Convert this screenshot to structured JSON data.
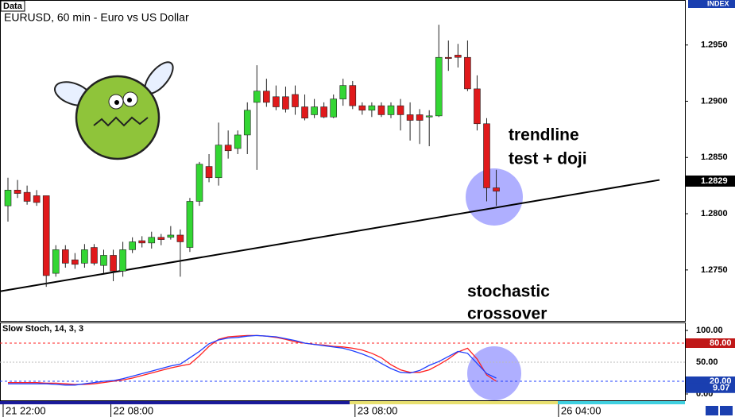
{
  "chart_data": {
    "type": "candlestick",
    "header_tag": "Data",
    "title": "EURUSD, 60 min - Euro vs US Dollar",
    "axis_tag": "INDEX",
    "up_color": "#33d633",
    "down_color": "#e0191b",
    "open": [
      1.2807,
      1.2821,
      1.2819,
      1.2816,
      1.2816,
      1.2747,
      1.2768,
      1.2759,
      1.2756,
      1.277,
      1.2754,
      1.2763,
      1.2749,
      1.2768,
      1.2776,
      1.2774,
      1.2779,
      1.2779,
      1.2781,
      1.277,
      1.2811,
      1.2842,
      1.2832,
      1.2861,
      1.2858,
      1.287,
      1.2899,
      1.2909,
      1.2904,
      1.2904,
      1.2906,
      1.2895,
      1.2888,
      1.2895,
      1.2886,
      1.2902,
      1.2914,
      1.2896,
      1.2892,
      1.2896,
      1.2888,
      1.2896,
      1.2888,
      1.2888,
      1.2886,
      1.2887,
      1.2939,
      1.2941,
      1.2939,
      1.2911,
      1.288,
      1.2823
    ],
    "high": [
      1.2832,
      1.283,
      1.2825,
      1.2821,
      1.2816,
      1.2772,
      1.2772,
      1.2765,
      1.2773,
      1.2773,
      1.2768,
      1.2768,
      1.2775,
      1.2779,
      1.278,
      1.2784,
      1.2782,
      1.2789,
      1.2786,
      1.2814,
      1.2846,
      1.2853,
      1.2881,
      1.2874,
      1.2874,
      1.2899,
      1.2932,
      1.292,
      1.2914,
      1.2913,
      1.2914,
      1.2906,
      1.2902,
      1.2899,
      1.2906,
      1.292,
      1.2918,
      1.2899,
      1.2899,
      1.2899,
      1.2899,
      1.2902,
      1.2899,
      1.2893,
      1.2892,
      1.2968,
      1.2954,
      1.2951,
      1.2954,
      1.2923,
      1.2885,
      1.2839
    ],
    "low": [
      1.2793,
      1.2814,
      1.2808,
      1.2807,
      1.2735,
      1.2744,
      1.2752,
      1.2751,
      1.2752,
      1.2754,
      1.2747,
      1.274,
      1.2744,
      1.2765,
      1.277,
      1.2769,
      1.2772,
      1.2777,
      1.2744,
      1.2766,
      1.2807,
      1.2828,
      1.2825,
      1.2849,
      1.2853,
      1.2853,
      1.2839,
      1.2895,
      1.2892,
      1.289,
      1.2888,
      1.2883,
      1.2885,
      1.2885,
      1.2885,
      1.2896,
      1.2893,
      1.2888,
      1.2886,
      1.2886,
      1.2885,
      1.2874,
      1.2865,
      1.2862,
      1.286,
      1.2886,
      1.2927,
      1.293,
      1.2909,
      1.2874,
      1.2811,
      1.2807
    ],
    "close": [
      1.2821,
      1.2818,
      1.2811,
      1.281,
      1.2745,
      1.2768,
      1.2756,
      1.2755,
      1.2768,
      1.2756,
      1.2763,
      1.2749,
      1.2768,
      1.2775,
      1.2774,
      1.2779,
      1.2777,
      1.2781,
      1.2775,
      1.2811,
      1.2844,
      1.2832,
      1.2861,
      1.2856,
      1.287,
      1.2892,
      1.2909,
      1.2899,
      1.2895,
      1.2893,
      1.2895,
      1.2885,
      1.2895,
      1.2886,
      1.2902,
      1.2914,
      1.2896,
      1.2892,
      1.2896,
      1.2888,
      1.2896,
      1.2888,
      1.2883,
      1.2883,
      1.2887,
      1.2939,
      1.2938,
      1.2939,
      1.2911,
      1.288,
      1.2823,
      1.282
    ],
    "ylim": [
      1.2704,
      1.299
    ],
    "yticks": [
      {
        "value": 1.275,
        "label": "1.2750"
      },
      {
        "value": 1.28,
        "label": "1.2800"
      },
      {
        "value": 1.285,
        "label": "1.2850"
      },
      {
        "value": 1.29,
        "label": "1.2900"
      },
      {
        "value": 1.295,
        "label": "1.2950"
      }
    ],
    "current_price": 1.2829,
    "trendline": {
      "start": 1.2731,
      "end": 1.283
    },
    "xticks": [
      {
        "value": -0.5,
        "label": "21 22:00"
      },
      {
        "value": 10.75,
        "label": "22 08:00"
      },
      {
        "value": 36.25,
        "label": "23 08:00"
      },
      {
        "value": 57.5,
        "label": "26 04:00"
      }
    ],
    "annotations": [
      "trendline",
      "test + doji",
      "stochastic",
      "crossover"
    ],
    "stochastic": {
      "title": "Slow Stoch, 14, 3, 3",
      "k_color": "#1f3fff",
      "d_color": "#ff1f1f",
      "k": [
        16,
        16,
        16,
        16,
        16,
        15,
        14,
        14,
        16,
        18,
        20,
        21,
        24,
        28,
        32,
        36,
        40,
        44,
        47,
        57,
        67,
        79,
        85,
        88,
        89,
        91,
        92,
        91,
        90,
        87,
        84,
        80,
        78,
        76,
        74,
        72,
        68,
        63,
        57,
        48,
        40,
        34,
        33,
        37,
        45,
        51,
        59,
        67,
        64,
        48,
        32,
        25
      ],
      "d": [
        18,
        18,
        18,
        18,
        17,
        17,
        16,
        15,
        15,
        16,
        18,
        20,
        22,
        25,
        29,
        33,
        37,
        41,
        44,
        47,
        60,
        75,
        86,
        90,
        91,
        92,
        92,
        91,
        89,
        86,
        82,
        80,
        78,
        77,
        75,
        74,
        72,
        69,
        64,
        57,
        46,
        38,
        34,
        34,
        38,
        46,
        55,
        66,
        72,
        55,
        30,
        20
      ],
      "ylim": [
        -11.25,
        111.25
      ],
      "yticks": [
        {
          "value": 0,
          "label": "0.00"
        },
        {
          "value": 50,
          "label": "50.00"
        },
        {
          "value": 100,
          "label": "100.00"
        }
      ],
      "upper_level": {
        "value": 80,
        "label": "80.00"
      },
      "lower_level": {
        "value": 20,
        "label": "20.00"
      },
      "last_value": 9.07
    }
  }
}
